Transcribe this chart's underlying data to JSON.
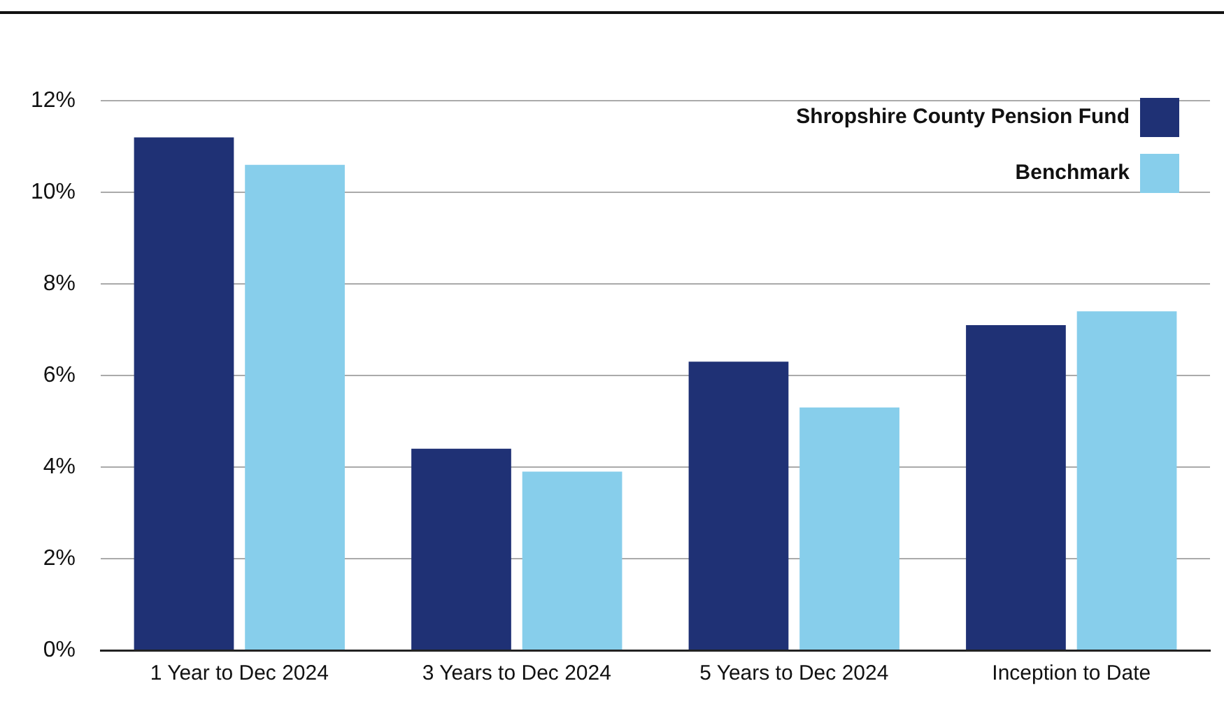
{
  "chart_data": {
    "type": "bar",
    "categories": [
      "1 Year to Dec 2024",
      "3 Years to Dec 2024",
      "5 Years to Dec 2024",
      "Inception to Date"
    ],
    "series": [
      {
        "name": "Shropshire County Pension Fund",
        "color": "#1f3175",
        "values": [
          11.2,
          4.4,
          6.3,
          7.1
        ]
      },
      {
        "name": "Benchmark",
        "color": "#87ceeb",
        "values": [
          10.6,
          3.9,
          5.3,
          7.4
        ]
      }
    ],
    "ylim": [
      0,
      12
    ],
    "yticks": [
      {
        "value": 0,
        "label": "0%"
      },
      {
        "value": 2,
        "label": "2%"
      },
      {
        "value": 4,
        "label": "4%"
      },
      {
        "value": 6,
        "label": "6%"
      },
      {
        "value": 8,
        "label": "8%"
      },
      {
        "value": 10,
        "label": "10%"
      },
      {
        "value": 12,
        "label": "12%"
      }
    ],
    "grid": "y",
    "legend": "top right"
  }
}
